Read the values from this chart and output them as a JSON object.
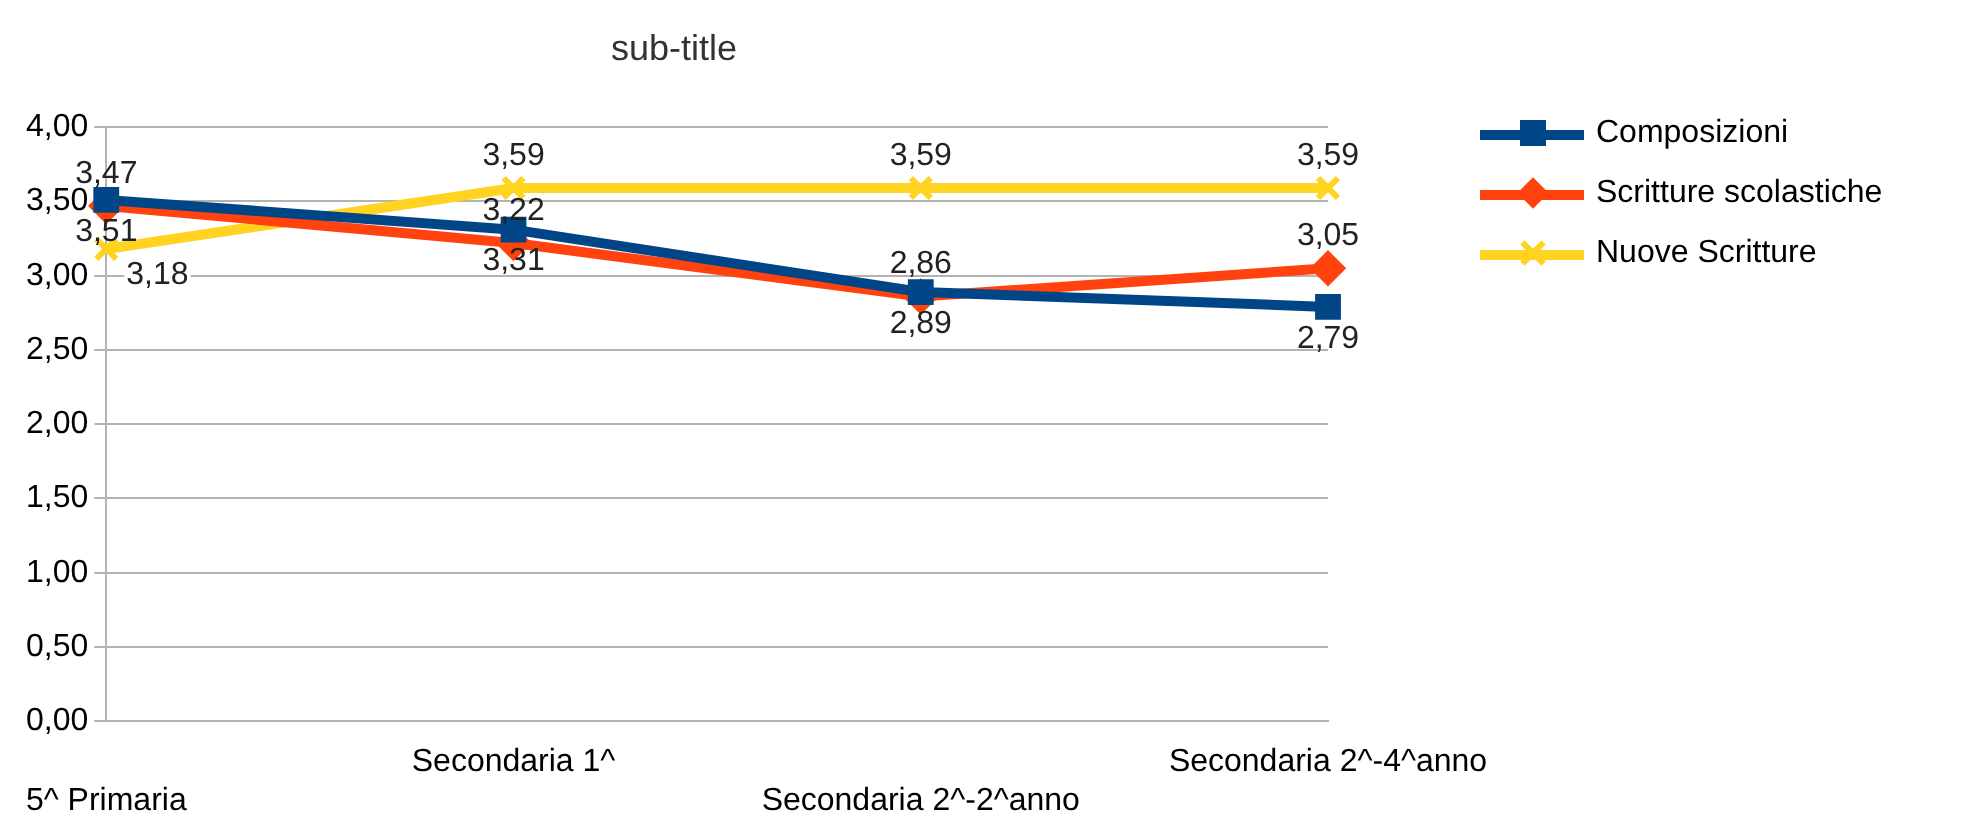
{
  "chart_data": {
    "type": "line",
    "title": "sub-title",
    "categories": [
      "5^ Primaria",
      "Secondaria 1^",
      "Secondaria 2^-2^anno",
      "Secondaria 2^-4^anno"
    ],
    "series": [
      {
        "name": "Composizioni",
        "color": "#004586",
        "marker": "square",
        "values": [
          3.51,
          3.31,
          2.89,
          2.79
        ],
        "value_labels": [
          "3,51",
          "3,31",
          "2,89",
          "2,79"
        ]
      },
      {
        "name": "Scritture scolastiche",
        "color": "#ff420e",
        "marker": "diamond",
        "values": [
          3.47,
          3.22,
          2.86,
          3.05
        ],
        "value_labels": [
          "3,47",
          "3,22",
          "2,86",
          "3,05"
        ]
      },
      {
        "name": "Nuove Scritture",
        "color": "#ffd320",
        "marker": "cross",
        "values": [
          3.18,
          3.59,
          3.59,
          3.59
        ],
        "value_labels": [
          "3,18",
          "3,59",
          "3,59",
          "3,59"
        ]
      }
    ],
    "ylim": [
      0,
      4
    ],
    "yticks": [
      {
        "value": 0,
        "label": "0,00"
      },
      {
        "value": 0.5,
        "label": "0,50"
      },
      {
        "value": 1,
        "label": "1,00"
      },
      {
        "value": 1.5,
        "label": "1,50"
      },
      {
        "value": 2,
        "label": "2,00"
      },
      {
        "value": 2.5,
        "label": "2,50"
      },
      {
        "value": 3,
        "label": "3,00"
      },
      {
        "value": 3.5,
        "label": "3,50"
      },
      {
        "value": 4,
        "label": "4,00"
      }
    ],
    "grid": "y",
    "legend": "right",
    "line_style": "solid"
  }
}
